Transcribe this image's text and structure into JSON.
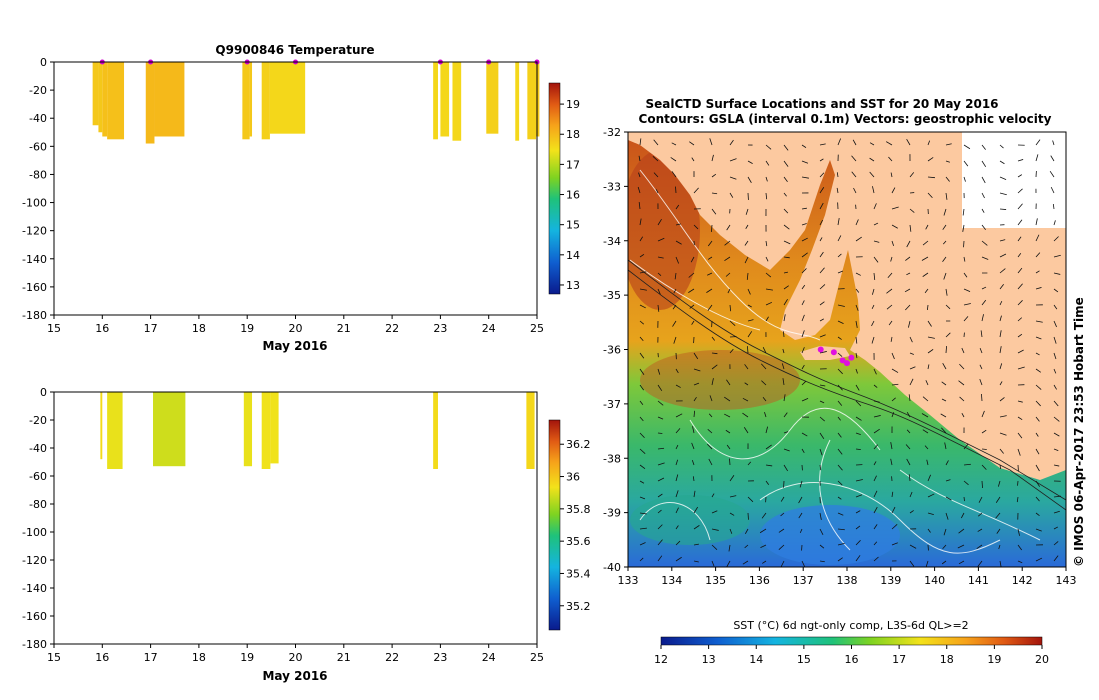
{
  "chart_data": [
    {
      "type": "bar",
      "title": "Q9900846  Temperature",
      "xlabel": "May 2016",
      "ylabel": "",
      "xlim": [
        15,
        25
      ],
      "ylim": [
        -180,
        0
      ],
      "x_ticks": [
        15,
        16,
        17,
        18,
        19,
        20,
        21,
        22,
        23,
        24,
        25
      ],
      "y_ticks": [
        0,
        -20,
        -40,
        -60,
        -80,
        -100,
        -120,
        -140,
        -160,
        -180
      ],
      "profiles": [
        {
          "x0": 15.8,
          "x1": 15.92,
          "depth": -45,
          "value": 17.8
        },
        {
          "x0": 15.92,
          "x1": 16.0,
          "depth": -50,
          "value": 17.8
        },
        {
          "x0": 16.0,
          "x1": 16.1,
          "depth": -53,
          "value": 17.9
        },
        {
          "x0": 16.1,
          "x1": 16.45,
          "depth": -55,
          "value": 17.9
        },
        {
          "x0": 16.9,
          "x1": 17.08,
          "depth": -58,
          "value": 18.0
        },
        {
          "x0": 17.08,
          "x1": 17.7,
          "depth": -53,
          "value": 18.0
        },
        {
          "x0": 18.9,
          "x1": 19.05,
          "depth": -55,
          "value": 17.8
        },
        {
          "x0": 19.05,
          "x1": 19.1,
          "depth": -53,
          "value": 17.8
        },
        {
          "x0": 19.3,
          "x1": 19.47,
          "depth": -55,
          "value": 17.7
        },
        {
          "x0": 19.47,
          "x1": 20.2,
          "depth": -51,
          "value": 17.6
        },
        {
          "x0": 22.85,
          "x1": 22.95,
          "depth": -55,
          "value": 17.6
        },
        {
          "x0": 23.0,
          "x1": 23.18,
          "depth": -53,
          "value": 17.6
        },
        {
          "x0": 23.25,
          "x1": 23.43,
          "depth": -56,
          "value": 17.6
        },
        {
          "x0": 23.95,
          "x1": 24.2,
          "depth": -51,
          "value": 17.7
        },
        {
          "x0": 24.55,
          "x1": 24.63,
          "depth": -56,
          "value": 17.6
        },
        {
          "x0": 24.8,
          "x1": 24.98,
          "depth": -55,
          "value": 17.7
        },
        {
          "x0": 24.98,
          "x1": 25.05,
          "depth": -53,
          "value": 17.8
        }
      ],
      "markers": [
        16.0,
        17.0,
        19.0,
        20.0,
        23.0,
        24.0,
        25.0
      ],
      "colorbar": {
        "min": 12.7,
        "max": 19.7,
        "ticks": [
          13,
          14,
          15,
          16,
          17,
          18,
          19
        ]
      }
    },
    {
      "type": "bar",
      "title": "",
      "xlabel": "May 2016",
      "ylabel": "",
      "xlim": [
        15,
        25
      ],
      "ylim": [
        -180,
        0
      ],
      "x_ticks": [
        15,
        16,
        17,
        18,
        19,
        20,
        21,
        22,
        23,
        24,
        25
      ],
      "y_ticks": [
        0,
        -20,
        -40,
        -60,
        -80,
        -100,
        -120,
        -140,
        -160,
        -180
      ],
      "profiles": [
        {
          "x0": 15.96,
          "x1": 16.0,
          "depth": -48,
          "value": 35.95
        },
        {
          "x0": 16.1,
          "x1": 16.42,
          "depth": -55,
          "value": 35.92
        },
        {
          "x0": 17.05,
          "x1": 17.72,
          "depth": -53,
          "value": 35.88
        },
        {
          "x0": 18.93,
          "x1": 19.1,
          "depth": -53,
          "value": 35.92
        },
        {
          "x0": 19.3,
          "x1": 19.48,
          "depth": -55,
          "value": 35.93
        },
        {
          "x0": 19.48,
          "x1": 19.65,
          "depth": -51,
          "value": 35.93
        },
        {
          "x0": 22.85,
          "x1": 22.95,
          "depth": -55,
          "value": 35.95
        },
        {
          "x0": 24.78,
          "x1": 24.95,
          "depth": -55,
          "value": 35.96
        }
      ],
      "colorbar": {
        "min": 35.05,
        "max": 36.35,
        "ticks": [
          35.2,
          35.4,
          35.6,
          35.8,
          36,
          36.2
        ]
      }
    },
    {
      "type": "heatmap",
      "title": "SealCTD Surface Locations and SST for 20 May 2016",
      "subtitle": "Contours: GSLA (interval 0.1m) Vectors: geostrophic velocity",
      "xlim": [
        133,
        143
      ],
      "ylim": [
        -40,
        -32
      ],
      "x_ticks": [
        133,
        134,
        135,
        136,
        137,
        138,
        139,
        140,
        141,
        142,
        143
      ],
      "y_ticks": [
        -32,
        -33,
        -34,
        -35,
        -36,
        -37,
        -38,
        -39,
        -40
      ],
      "colorbar": {
        "label": "SST (°C) 6d ngt-only comp, L3S-6d QL>=2",
        "min": 12,
        "max": 20,
        "ticks": [
          12,
          13,
          14,
          15,
          16,
          17,
          18,
          19,
          20
        ]
      },
      "seal_positions": [
        [
          137.7,
          -36.05
        ],
        [
          137.9,
          -36.2
        ],
        [
          138.0,
          -36.25
        ],
        [
          138.1,
          -36.15
        ],
        [
          137.4,
          -36.0
        ]
      ],
      "side_label": "© IMOS 06-Apr-2017 23:53 Hobart Time"
    }
  ]
}
